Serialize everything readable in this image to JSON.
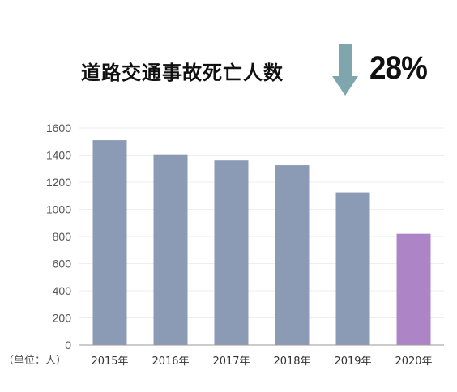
{
  "header": {
    "title": "道路交通事故死亡人数",
    "change_percent": "28%",
    "arrow_direction": "down",
    "arrow_color": "#7fa6ad"
  },
  "chart_data": {
    "type": "bar",
    "categories": [
      "2015年",
      "2016年",
      "2017年",
      "2018年",
      "2019年",
      "2020年"
    ],
    "values": [
      1510,
      1405,
      1360,
      1325,
      1125,
      820
    ],
    "unit_label": "（单位：人）",
    "yticks": [
      0,
      200,
      400,
      600,
      800,
      1000,
      1200,
      1400,
      1600
    ],
    "ylim": [
      0,
      1600
    ],
    "grid": true,
    "colors": {
      "default": "#8c9bb5",
      "highlight": "#ad85c6",
      "highlight_category": "2020年"
    }
  }
}
